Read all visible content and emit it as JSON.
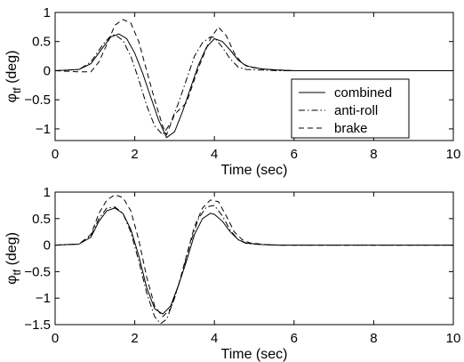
{
  "chart_data": [
    {
      "type": "line",
      "xlabel": "Time (sec)",
      "ylabel_main": "φ",
      "ylabel_sub": "tf",
      "ylabel_unit": "(deg)",
      "xlim": [
        0,
        10
      ],
      "ylim": [
        -1.2,
        1
      ],
      "xticks": [
        0,
        2,
        4,
        6,
        8,
        10
      ],
      "yticks": [
        -1,
        -0.5,
        0,
        0.5,
        1
      ],
      "ytick_labels": [
        "−1",
        "−0.5",
        "0",
        "0.5",
        "1"
      ],
      "grid": false,
      "legend_position": "bottom-right",
      "series": [
        {
          "name": "combined",
          "style": "solid",
          "color": "#000000",
          "x": [
            0,
            0.6,
            0.9,
            1.2,
            1.4,
            1.6,
            1.8,
            2.0,
            2.2,
            2.4,
            2.6,
            2.8,
            3.0,
            3.2,
            3.4,
            3.6,
            3.8,
            4.0,
            4.2,
            4.4,
            4.6,
            4.8,
            5.2,
            5.6,
            6.0,
            7.0,
            10.0
          ],
          "y": [
            0,
            0.02,
            0.12,
            0.4,
            0.58,
            0.63,
            0.55,
            0.3,
            -0.05,
            -0.45,
            -0.85,
            -1.15,
            -1.05,
            -0.7,
            -0.3,
            0.1,
            0.4,
            0.55,
            0.5,
            0.35,
            0.18,
            0.08,
            0.03,
            0.01,
            0,
            0,
            0
          ]
        },
        {
          "name": "anti-roll",
          "style": "dashdot",
          "color": "#000000",
          "x": [
            0,
            0.6,
            0.9,
            1.2,
            1.4,
            1.5,
            1.7,
            1.9,
            2.1,
            2.3,
            2.5,
            2.7,
            2.9,
            3.1,
            3.3,
            3.5,
            3.7,
            3.9,
            4.0,
            4.2,
            4.4,
            4.6,
            4.8,
            5.2,
            5.6,
            6.0,
            10.0
          ],
          "y": [
            0,
            0.02,
            0.15,
            0.45,
            0.6,
            0.62,
            0.52,
            0.25,
            -0.15,
            -0.6,
            -0.95,
            -1.1,
            -0.9,
            -0.55,
            -0.15,
            0.25,
            0.48,
            0.58,
            0.57,
            0.4,
            0.2,
            0.06,
            0.02,
            0.01,
            0,
            0,
            0
          ]
        },
        {
          "name": "brake",
          "style": "dashed",
          "color": "#000000",
          "x": [
            0,
            0.6,
            0.9,
            1.1,
            1.3,
            1.5,
            1.7,
            1.9,
            2.1,
            2.3,
            2.5,
            2.7,
            2.8,
            3.0,
            3.3,
            3.6,
            3.9,
            4.1,
            4.3,
            4.5,
            4.7,
            4.9,
            5.3,
            5.7,
            6.0,
            10.0
          ],
          "y": [
            0,
            -0.02,
            -0.02,
            0.15,
            0.45,
            0.78,
            0.88,
            0.82,
            0.5,
            0.0,
            -0.5,
            -0.95,
            -1.1,
            -0.75,
            -0.55,
            0.05,
            0.55,
            0.75,
            0.6,
            0.3,
            0.12,
            0.06,
            0.02,
            0.01,
            0,
            0
          ]
        }
      ]
    },
    {
      "type": "line",
      "xlabel": "Time (sec)",
      "ylabel_main": "φ",
      "ylabel_sub": "tf",
      "ylabel_unit": "(deg)",
      "xlim": [
        0,
        10
      ],
      "ylim": [
        -1.5,
        1
      ],
      "xticks": [
        0,
        2,
        4,
        6,
        8,
        10
      ],
      "yticks": [
        -1.5,
        -1,
        -0.5,
        0,
        0.5,
        1
      ],
      "ytick_labels": [
        "−1.5",
        "−1",
        "−0.5",
        "0",
        "0.5",
        "1"
      ],
      "grid": false,
      "series": [
        {
          "name": "combined",
          "style": "solid",
          "color": "#000000",
          "x": [
            0,
            0.6,
            0.9,
            1.1,
            1.3,
            1.5,
            1.7,
            1.9,
            2.1,
            2.3,
            2.5,
            2.7,
            2.9,
            3.1,
            3.3,
            3.5,
            3.7,
            3.9,
            4.0,
            4.2,
            4.4,
            4.6,
            4.8,
            5.2,
            5.6,
            6.0,
            10.0
          ],
          "y": [
            0,
            0.02,
            0.15,
            0.45,
            0.65,
            0.7,
            0.6,
            0.3,
            -0.2,
            -0.8,
            -1.2,
            -1.3,
            -1.15,
            -0.75,
            -0.3,
            0.2,
            0.5,
            0.6,
            0.58,
            0.45,
            0.25,
            0.1,
            0.04,
            0.01,
            0,
            0,
            0
          ]
        },
        {
          "name": "anti-roll",
          "style": "dashdot",
          "color": "#000000",
          "x": [
            0,
            0.6,
            0.9,
            1.1,
            1.3,
            1.5,
            1.7,
            1.9,
            2.1,
            2.3,
            2.5,
            2.65,
            2.8,
            3.0,
            3.2,
            3.4,
            3.6,
            3.8,
            4.0,
            4.2,
            4.4,
            4.6,
            4.8,
            5.2,
            5.6,
            6.0,
            10.0
          ],
          "y": [
            0,
            0.02,
            0.18,
            0.5,
            0.7,
            0.72,
            0.6,
            0.25,
            -0.3,
            -0.9,
            -1.35,
            -1.48,
            -1.4,
            -1.0,
            -0.5,
            0.05,
            0.5,
            0.72,
            0.75,
            0.55,
            0.28,
            0.1,
            0.03,
            0.01,
            0,
            0,
            0
          ]
        },
        {
          "name": "brake",
          "style": "dashed",
          "color": "#000000",
          "x": [
            0,
            0.6,
            0.9,
            1.1,
            1.3,
            1.5,
            1.7,
            1.9,
            2.1,
            2.3,
            2.5,
            2.7,
            2.9,
            3.1,
            3.3,
            3.5,
            3.7,
            3.9,
            4.1,
            4.3,
            4.5,
            4.7,
            4.9,
            5.3,
            5.7,
            6.0,
            10.0
          ],
          "y": [
            0,
            0.02,
            0.2,
            0.6,
            0.85,
            0.95,
            0.9,
            0.65,
            0.1,
            -0.6,
            -1.15,
            -1.35,
            -1.2,
            -0.75,
            -0.2,
            0.35,
            0.7,
            0.85,
            0.82,
            0.55,
            0.25,
            0.1,
            0.04,
            0.01,
            0,
            0,
            0
          ]
        }
      ]
    }
  ]
}
